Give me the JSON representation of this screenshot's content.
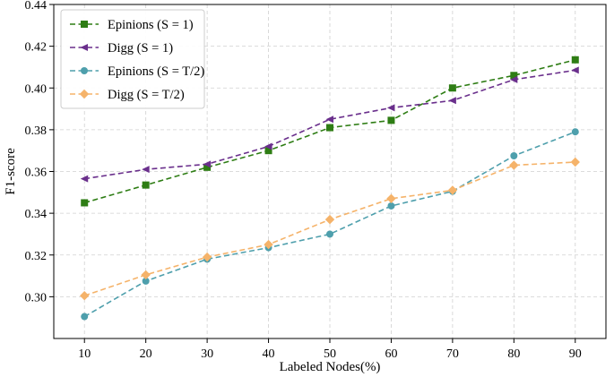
{
  "chart_data": {
    "type": "line",
    "title": "",
    "xlabel": "Labeled Nodes(%)",
    "ylabel": "F1-score",
    "x": [
      10,
      20,
      30,
      40,
      50,
      60,
      70,
      80,
      90
    ],
    "xlim": [
      5,
      95
    ],
    "ylim": [
      0.28,
      0.44
    ],
    "yticks": [
      0.3,
      0.32,
      0.34,
      0.36,
      0.38,
      0.4,
      0.42,
      0.44
    ],
    "ytick_labels": [
      "0.30",
      "0.32",
      "0.34",
      "0.36",
      "0.38",
      "0.40",
      "0.42",
      "0.44"
    ],
    "xtick_labels": [
      "10",
      "20",
      "30",
      "40",
      "50",
      "60",
      "70",
      "80",
      "90"
    ],
    "grid": true,
    "legend_position": "top-left",
    "series": [
      {
        "name": "Epinions (S = 1)",
        "color": "#2e7d14",
        "marker": "square",
        "values": [
          0.345,
          0.3535,
          0.362,
          0.37,
          0.381,
          0.3845,
          0.4,
          0.406,
          0.4135
        ]
      },
      {
        "name": "Digg (S = 1)",
        "color": "#6a2f8c",
        "marker": "triangle-left",
        "values": [
          0.3565,
          0.361,
          0.3635,
          0.372,
          0.385,
          0.3905,
          0.394,
          0.404,
          0.4085
        ]
      },
      {
        "name": "Epinions (S = T/2)",
        "color": "#4e9fac",
        "marker": "circle",
        "values": [
          0.2905,
          0.3075,
          0.318,
          0.3235,
          0.33,
          0.3435,
          0.3505,
          0.3675,
          0.379
        ]
      },
      {
        "name": "Digg (S = T/2)",
        "color": "#f5b36a",
        "marker": "diamond",
        "values": [
          0.3005,
          0.3105,
          0.319,
          0.325,
          0.337,
          0.347,
          0.351,
          0.363,
          0.3645
        ]
      }
    ]
  }
}
